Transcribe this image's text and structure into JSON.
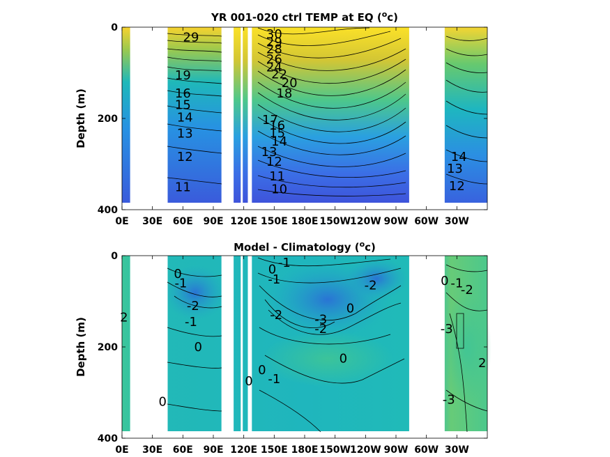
{
  "chart_data": [
    {
      "type": "heatmap",
      "title_main": "YR 001-020 ctrl TEMP at EQ (",
      "title_sup": "o",
      "title_end": "c)",
      "ylabel": "Depth (m)",
      "ylim": [
        400,
        0
      ],
      "xlim": [
        0,
        360
      ],
      "x_ticks": [
        "0E",
        "30E",
        "60E",
        "90E",
        "120E",
        "150E",
        "180E",
        "150W",
        "120W",
        "90W",
        "60W",
        "30W"
      ],
      "x_tick_lons": [
        0,
        30,
        60,
        90,
        120,
        150,
        180,
        210,
        240,
        270,
        300,
        330
      ],
      "y_ticks": [
        0,
        200,
        400
      ],
      "land_gaps_lon": [
        [
          8,
          45
        ],
        [
          98,
          110
        ],
        [
          117,
          119
        ],
        [
          124,
          128
        ],
        [
          283,
          318
        ]
      ],
      "contour_labels": [
        {
          "text": "30",
          "lon": 150,
          "depth": 15
        },
        {
          "text": "29",
          "lon": 150,
          "depth": 33
        },
        {
          "text": "29",
          "lon": 68,
          "depth": 22
        },
        {
          "text": "28",
          "lon": 150,
          "depth": 48
        },
        {
          "text": "26",
          "lon": 150,
          "depth": 70
        },
        {
          "text": "24",
          "lon": 150,
          "depth": 88
        },
        {
          "text": "22",
          "lon": 155,
          "depth": 103
        },
        {
          "text": "20",
          "lon": 165,
          "depth": 122
        },
        {
          "text": "18",
          "lon": 160,
          "depth": 145
        },
        {
          "text": "19",
          "lon": 60,
          "depth": 105
        },
        {
          "text": "16",
          "lon": 60,
          "depth": 145
        },
        {
          "text": "15",
          "lon": 60,
          "depth": 170
        },
        {
          "text": "14",
          "lon": 62,
          "depth": 198
        },
        {
          "text": "13",
          "lon": 62,
          "depth": 233
        },
        {
          "text": "12",
          "lon": 62,
          "depth": 284
        },
        {
          "text": "11",
          "lon": 60,
          "depth": 350
        },
        {
          "text": "17",
          "lon": 146,
          "depth": 203
        },
        {
          "text": "16",
          "lon": 153,
          "depth": 215
        },
        {
          "text": "15",
          "lon": 153,
          "depth": 232
        },
        {
          "text": "14",
          "lon": 155,
          "depth": 250
        },
        {
          "text": "13",
          "lon": 145,
          "depth": 273
        },
        {
          "text": "12",
          "lon": 150,
          "depth": 295
        },
        {
          "text": "11",
          "lon": 153,
          "depth": 327
        },
        {
          "text": "10",
          "lon": 155,
          "depth": 355
        },
        {
          "text": "14",
          "lon": 332,
          "depth": 284
        },
        {
          "text": "13",
          "lon": 328,
          "depth": 310
        },
        {
          "text": "12",
          "lon": 330,
          "depth": 348
        }
      ],
      "colormap": [
        "#3e4fd8",
        "#3b7bea",
        "#2aa3dc",
        "#1ebfb4",
        "#6dcc6a",
        "#c9c43a",
        "#f8dc2e",
        "#fbf519"
      ]
    },
    {
      "type": "heatmap",
      "title_main": "Model - Climatology (",
      "title_sup": "o",
      "title_end": "c)",
      "ylabel": "Depth (m)",
      "ylim": [
        400,
        0
      ],
      "xlim": [
        0,
        360
      ],
      "x_ticks": [
        "0E",
        "30E",
        "60E",
        "90E",
        "120E",
        "150E",
        "180E",
        "150W",
        "120W",
        "90W",
        "60W",
        "30W"
      ],
      "x_tick_lons": [
        0,
        30,
        60,
        90,
        120,
        150,
        180,
        210,
        240,
        270,
        300,
        330
      ],
      "y_ticks": [
        0,
        200,
        400
      ],
      "land_gaps_lon": [
        [
          8,
          45
        ],
        [
          98,
          110
        ],
        [
          117,
          119
        ],
        [
          124,
          128
        ],
        [
          283,
          318
        ]
      ],
      "contour_labels": [
        {
          "text": "0",
          "lon": 148,
          "depth": 30
        },
        {
          "text": "-1",
          "lon": 160,
          "depth": 15
        },
        {
          "text": "-1",
          "lon": 150,
          "depth": 52
        },
        {
          "text": "0",
          "lon": 55,
          "depth": 40
        },
        {
          "text": "-1",
          "lon": 58,
          "depth": 60
        },
        {
          "text": "-2",
          "lon": 70,
          "depth": 110
        },
        {
          "text": "-1",
          "lon": 68,
          "depth": 145
        },
        {
          "text": "-2",
          "lon": 245,
          "depth": 65
        },
        {
          "text": "0",
          "lon": 225,
          "depth": 115
        },
        {
          "text": "-2",
          "lon": 152,
          "depth": 130
        },
        {
          "text": "-3",
          "lon": 196,
          "depth": 140
        },
        {
          "text": "-2",
          "lon": 196,
          "depth": 160
        },
        {
          "text": "0",
          "lon": 75,
          "depth": 200
        },
        {
          "text": "0",
          "lon": 218,
          "depth": 225
        },
        {
          "text": "-1",
          "lon": 150,
          "depth": 270
        },
        {
          "text": "0",
          "lon": 138,
          "depth": 250
        },
        {
          "text": "0",
          "lon": 125,
          "depth": 275
        },
        {
          "text": "0",
          "lon": 40,
          "depth": 320
        },
        {
          "text": "0",
          "lon": 318,
          "depth": 55
        },
        {
          "text": "-1",
          "lon": 330,
          "depth": 60
        },
        {
          "text": "-2",
          "lon": 340,
          "depth": 75
        },
        {
          "text": "-3",
          "lon": 320,
          "depth": 160
        },
        {
          "text": "-3",
          "lon": 322,
          "depth": 315
        },
        {
          "text": "2",
          "lon": 355,
          "depth": 235
        },
        {
          "text": "2",
          "lon": 2,
          "depth": 135
        }
      ],
      "colormap": [
        "#2a7fd2",
        "#22a6c9",
        "#1fbbb6",
        "#3cc69b",
        "#72cd73"
      ]
    }
  ]
}
